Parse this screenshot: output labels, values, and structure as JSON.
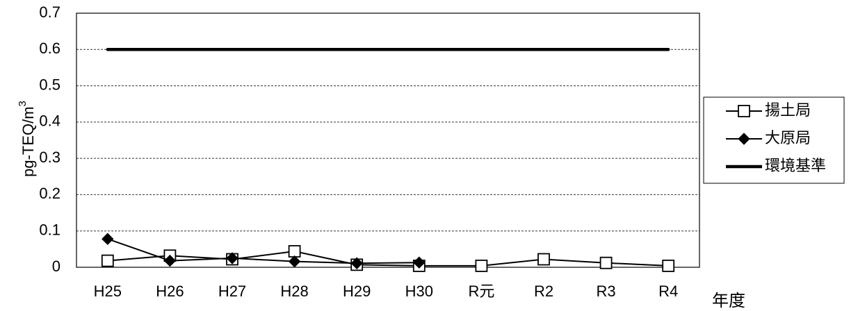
{
  "chart_data": {
    "type": "line",
    "categories": [
      "H25",
      "H26",
      "H27",
      "H28",
      "H29",
      "H30",
      "R元",
      "R2",
      "R3",
      "R4"
    ],
    "series": [
      {
        "name": "揚土局",
        "marker": "square-open",
        "color": "#000000",
        "values": [
          0.018,
          0.032,
          0.022,
          0.044,
          0.007,
          0.004,
          0.004,
          0.022,
          0.012,
          0.004
        ]
      },
      {
        "name": "大原局",
        "marker": "diamond",
        "color": "#000000",
        "values": [
          0.078,
          0.018,
          0.025,
          0.016,
          0.011,
          0.013,
          null,
          null,
          null,
          null
        ]
      },
      {
        "name": "環境基準",
        "marker": "none",
        "color": "#000000",
        "values": [
          0.6,
          0.6,
          0.6,
          0.6,
          0.6,
          0.6,
          0.6,
          0.6,
          0.6,
          0.6
        ]
      }
    ],
    "ylabel": "pg-TEQ/m3",
    "xlabel": "年度",
    "ylim": [
      0,
      0.7
    ],
    "yticks": [
      0,
      0.1,
      0.2,
      0.3,
      0.4,
      0.5,
      0.6,
      0.7
    ],
    "grid": true,
    "legend_position": "right"
  }
}
